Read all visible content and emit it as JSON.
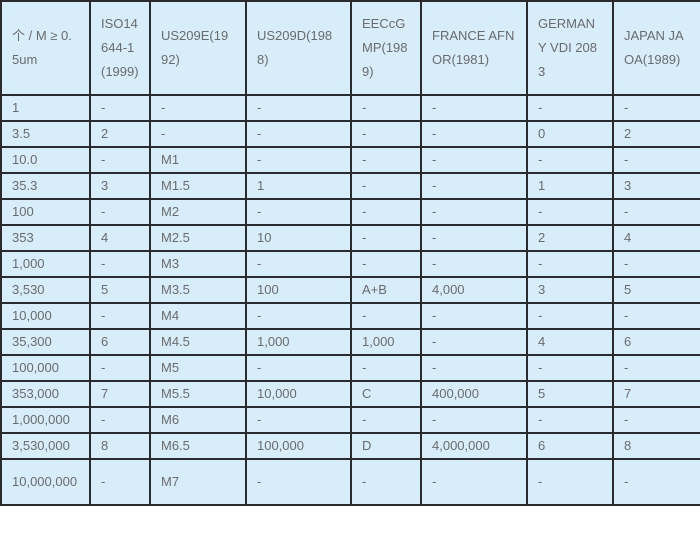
{
  "headers": [
    "个 / M ≥ 0.5um",
    "ISO14644-1(1999)",
    "US209E(1992)",
    "US209D(1988)",
    "EECcGMP(1989)",
    "FRANCE AFNOR(1981)",
    "GERMANY VDI 2083",
    "JAPAN JAOA(1989)"
  ],
  "rows": [
    [
      "1",
      "-",
      "-",
      "-",
      "-",
      "-",
      "-",
      "-"
    ],
    [
      "3.5",
      "2",
      "-",
      "-",
      "-",
      "-",
      "0",
      "2"
    ],
    [
      "10.0",
      "-",
      "M1",
      "-",
      "-",
      "-",
      "-",
      "-"
    ],
    [
      "35.3",
      "3",
      "M1.5",
      "1",
      "-",
      "-",
      "1",
      "3"
    ],
    [
      "100",
      "-",
      "M2",
      "-",
      "-",
      "-",
      "-",
      "-"
    ],
    [
      "353",
      "4",
      "M2.5",
      "10",
      "-",
      "-",
      "2",
      "4"
    ],
    [
      "1,000",
      "-",
      "M3",
      "-",
      "-",
      "-",
      "-",
      "-"
    ],
    [
      "3,530",
      "5",
      "M3.5",
      "100",
      "A+B",
      "4,000",
      "3",
      "5"
    ],
    [
      "10,000",
      "-",
      "M4",
      "-",
      "-",
      "-",
      "-",
      "-"
    ],
    [
      "35,300",
      "6",
      "M4.5",
      "1,000",
      "1,000",
      "-",
      "4",
      "6"
    ],
    [
      "100,000",
      "-",
      "M5",
      "-",
      "-",
      "-",
      "-",
      "-"
    ],
    [
      "353,000",
      "7",
      "M5.5",
      "10,000",
      "C",
      "400,000",
      "5",
      "7"
    ],
    [
      "1,000,000",
      "-",
      "M6",
      "-",
      "-",
      "-",
      "-",
      "-"
    ],
    [
      "3,530,000",
      "8",
      "M6.5",
      "100,000",
      "D",
      "4,000,000",
      "6",
      "8"
    ],
    [
      "10,000,000",
      "-",
      "M7",
      "-",
      "-",
      "-",
      "-",
      "-"
    ]
  ]
}
